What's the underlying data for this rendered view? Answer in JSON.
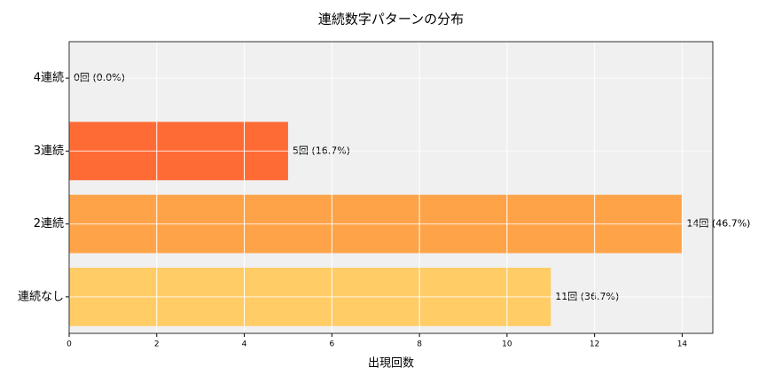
{
  "chart_data": {
    "type": "barh",
    "title": "連続数字パターンの分布",
    "x_label": "出現回数",
    "categories": [
      "4連続",
      "3連続",
      "2連続",
      "連続なし"
    ],
    "values": [
      0,
      5,
      14,
      11
    ],
    "value_labels": [
      "0回 (0.0%)",
      "5回 (16.7%)",
      "14回 (46.7%)",
      "11回 (36.7%)"
    ],
    "colors": [
      "#ff4d2e",
      "#ff6b35",
      "#ffa348",
      "#ffcc66"
    ],
    "xlim": [
      0,
      14.7
    ],
    "xticks": [
      0,
      2,
      4,
      6,
      8,
      10,
      12,
      14
    ],
    "grid": true
  }
}
